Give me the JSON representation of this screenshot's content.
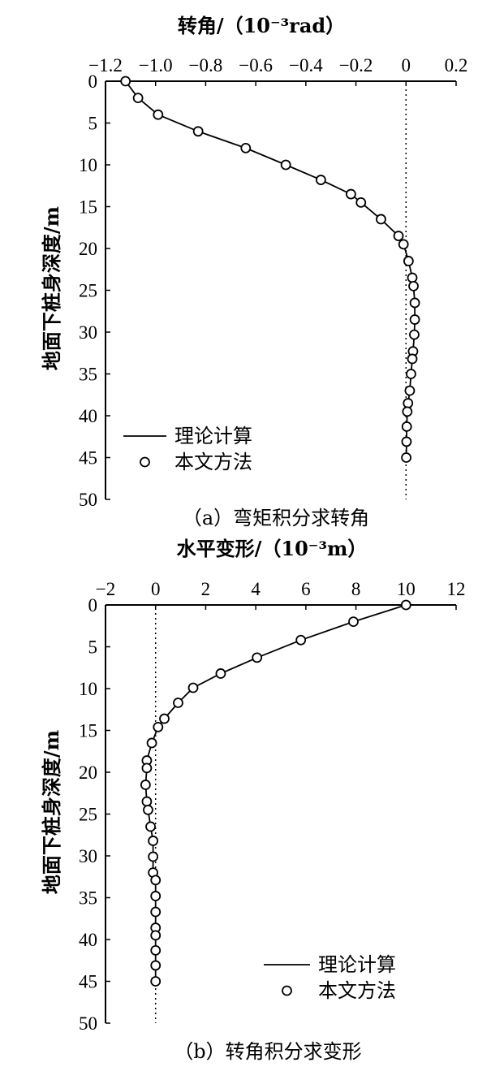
{
  "chart_data": [
    {
      "type": "line",
      "panel": "a",
      "title": "转角/（10⁻³rad）",
      "caption": "（a）弯矩积分求转角",
      "ylabel": "地面下桩身深度/m",
      "xlim": [
        -1.2,
        0.2
      ],
      "ylim": [
        0,
        50
      ],
      "x_axis_position": "top",
      "y_inverted": true,
      "xticks": [
        -1.2,
        -1.0,
        -0.8,
        -0.6,
        -0.4,
        -0.2,
        0,
        0.2
      ],
      "xtick_labels": [
        "−1.2",
        "−1.0",
        "−0.8",
        "−0.6",
        "−0.4",
        "−0.2",
        "0",
        "0.2"
      ],
      "yticks": [
        0,
        5,
        10,
        15,
        20,
        25,
        30,
        35,
        40,
        45,
        50
      ],
      "ytick_labels": [
        "0",
        "5",
        "10",
        "15",
        "20",
        "25",
        "30",
        "35",
        "40",
        "45",
        "50"
      ],
      "reference_line_x": 0,
      "legend": {
        "position": "bottom-left",
        "entries": [
          "理论计算",
          "本文方法"
        ]
      },
      "series": [
        {
          "name": "理论计算",
          "style": "line",
          "points": [
            [
              -1.12,
              0
            ],
            [
              -1.07,
              2
            ],
            [
              -0.99,
              4
            ],
            [
              -0.83,
              6
            ],
            [
              -0.64,
              8
            ],
            [
              -0.48,
              10
            ],
            [
              -0.34,
              11.8
            ],
            [
              -0.22,
              13.5
            ],
            [
              -0.18,
              14.5
            ],
            [
              -0.1,
              16.5
            ],
            [
              -0.03,
              18.5
            ],
            [
              -0.01,
              19.5
            ],
            [
              0.01,
              21.5
            ],
            [
              0.025,
              23.5
            ],
            [
              0.03,
              24.5
            ],
            [
              0.035,
              26.5
            ],
            [
              0.035,
              28.5
            ],
            [
              0.033,
              30.3
            ],
            [
              0.028,
              32.3
            ],
            [
              0.025,
              33.2
            ],
            [
              0.02,
              35
            ],
            [
              0.015,
              37
            ],
            [
              0.008,
              38.5
            ],
            [
              0.005,
              39.5
            ],
            [
              0.003,
              41.3
            ],
            [
              0.002,
              43.1
            ],
            [
              0.001,
              45
            ]
          ]
        },
        {
          "name": "本文方法",
          "style": "circle",
          "points": [
            [
              -1.12,
              0
            ],
            [
              -1.07,
              2
            ],
            [
              -0.99,
              4
            ],
            [
              -0.83,
              6
            ],
            [
              -0.64,
              8
            ],
            [
              -0.48,
              10
            ],
            [
              -0.34,
              11.8
            ],
            [
              -0.22,
              13.5
            ],
            [
              -0.18,
              14.5
            ],
            [
              -0.1,
              16.5
            ],
            [
              -0.03,
              18.5
            ],
            [
              -0.01,
              19.5
            ],
            [
              0.01,
              21.5
            ],
            [
              0.025,
              23.5
            ],
            [
              0.03,
              24.5
            ],
            [
              0.035,
              26.5
            ],
            [
              0.035,
              28.5
            ],
            [
              0.033,
              30.3
            ],
            [
              0.028,
              32.3
            ],
            [
              0.025,
              33.2
            ],
            [
              0.02,
              35
            ],
            [
              0.015,
              37
            ],
            [
              0.008,
              38.5
            ],
            [
              0.005,
              39.5
            ],
            [
              0.003,
              41.3
            ],
            [
              0.002,
              43.1
            ],
            [
              0.001,
              45
            ]
          ]
        }
      ]
    },
    {
      "type": "line",
      "panel": "b",
      "title": "水平变形/（10⁻³m）",
      "caption": "（b）转角积分求变形",
      "ylabel": "地面下桩身深度/m",
      "xlim": [
        -2,
        12
      ],
      "ylim": [
        0,
        50
      ],
      "x_axis_position": "top",
      "y_inverted": true,
      "xticks": [
        -2,
        0,
        2,
        4,
        6,
        8,
        10,
        12
      ],
      "xtick_labels": [
        "−2",
        "0",
        "2",
        "4",
        "6",
        "8",
        "10",
        "12"
      ],
      "yticks": [
        0,
        5,
        10,
        15,
        20,
        25,
        30,
        35,
        40,
        45,
        50
      ],
      "ytick_labels": [
        "0",
        "5",
        "10",
        "15",
        "20",
        "25",
        "30",
        "35",
        "40",
        "45",
        "50"
      ],
      "reference_line_x": 0,
      "legend": {
        "position": "bottom-right",
        "entries": [
          "理论计算",
          "本文方法"
        ]
      },
      "series": [
        {
          "name": "理论计算",
          "style": "line",
          "points": [
            [
              10.0,
              0
            ],
            [
              7.9,
              2
            ],
            [
              5.8,
              4.2
            ],
            [
              4.05,
              6.3
            ],
            [
              2.6,
              8.2
            ],
            [
              1.5,
              9.9
            ],
            [
              0.9,
              11.7
            ],
            [
              0.35,
              13.6
            ],
            [
              0.1,
              14.6
            ],
            [
              -0.15,
              16.5
            ],
            [
              -0.35,
              18.6
            ],
            [
              -0.35,
              19.5
            ],
            [
              -0.4,
              21.5
            ],
            [
              -0.35,
              23.5
            ],
            [
              -0.3,
              24.5
            ],
            [
              -0.2,
              26.5
            ],
            [
              -0.1,
              28.2
            ],
            [
              -0.1,
              30.1
            ],
            [
              -0.1,
              32.0
            ],
            [
              0.0,
              32.9
            ],
            [
              0.0,
              34.8
            ],
            [
              0.0,
              36.7
            ],
            [
              0.0,
              38.6
            ],
            [
              0.0,
              39.5
            ],
            [
              0.0,
              41.3
            ],
            [
              0.0,
              43.1
            ],
            [
              0.0,
              45.0
            ]
          ]
        },
        {
          "name": "本文方法",
          "style": "circle",
          "points": [
            [
              10.0,
              0
            ],
            [
              7.9,
              2
            ],
            [
              5.8,
              4.2
            ],
            [
              4.05,
              6.3
            ],
            [
              2.6,
              8.2
            ],
            [
              1.5,
              9.9
            ],
            [
              0.9,
              11.7
            ],
            [
              0.35,
              13.6
            ],
            [
              0.1,
              14.6
            ],
            [
              -0.15,
              16.5
            ],
            [
              -0.35,
              18.6
            ],
            [
              -0.35,
              19.5
            ],
            [
              -0.4,
              21.5
            ],
            [
              -0.35,
              23.5
            ],
            [
              -0.3,
              24.5
            ],
            [
              -0.2,
              26.5
            ],
            [
              -0.1,
              28.2
            ],
            [
              -0.1,
              30.1
            ],
            [
              -0.1,
              32.0
            ],
            [
              0.0,
              32.9
            ],
            [
              0.0,
              34.8
            ],
            [
              0.0,
              36.7
            ],
            [
              0.0,
              38.6
            ],
            [
              0.0,
              39.5
            ],
            [
              0.0,
              41.3
            ],
            [
              0.0,
              43.1
            ],
            [
              0.0,
              45.0
            ]
          ]
        }
      ]
    }
  ]
}
